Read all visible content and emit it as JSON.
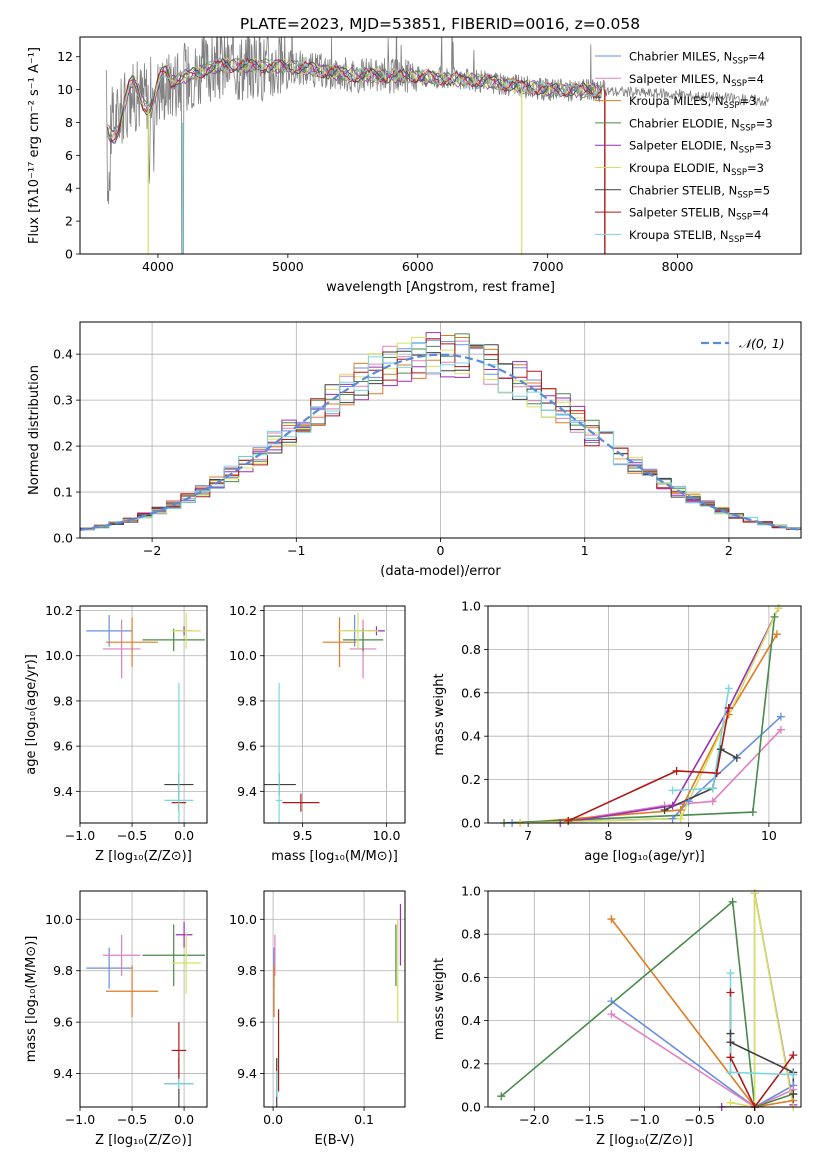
{
  "figure_title": "PLATE=2023, MJD=53851, FIBERID=0016, z=0.058",
  "colors": {
    "Chabrier MILES": "#6a8fe0",
    "Salpeter MILES": "#e080c0",
    "Kroupa MILES": "#e07b22",
    "Chabrier ELODIE": "#4a8a4a",
    "Salpeter ELODIE": "#9a2fb8",
    "Kroupa ELODIE": "#d8e060",
    "Chabrier STELIB": "#404040",
    "Salpeter STELIB": "#b01818",
    "Kroupa STELIB": "#78d8e0",
    "data": "#808080",
    "normal": "#5b8bd8"
  },
  "chart_data": [
    {
      "id": "spectrum",
      "type": "line",
      "title": "PLATE=2023, MJD=53851, FIBERID=0016, z=0.058",
      "xlabel": "wavelength [Angstrom, rest frame]",
      "ylabel": "Flux [fλ10⁻¹⁷ erg cm⁻² s⁻¹ A⁻¹]",
      "xlim": [
        3400,
        8950
      ],
      "ylim": [
        0,
        13.2
      ],
      "xticks": [
        4000,
        5000,
        6000,
        7000,
        8000
      ],
      "yticks": [
        0,
        2,
        4,
        6,
        8,
        10,
        12
      ],
      "grid": false,
      "legend": "upper-right",
      "legend_entries": [
        {
          "model": "Chabrier MILES",
          "label": "Chabrier MILES, N",
          "sub": "SSP",
          "tail": "=4"
        },
        {
          "model": "Salpeter MILES",
          "label": "Salpeter MILES, N",
          "sub": "SSP",
          "tail": "=4"
        },
        {
          "model": "Kroupa MILES",
          "label": "Kroupa MILES, N",
          "sub": "SSP",
          "tail": "=3"
        },
        {
          "model": "Chabrier ELODIE",
          "label": "Chabrier ELODIE, N",
          "sub": "SSP",
          "tail": "=3"
        },
        {
          "model": "Salpeter ELODIE",
          "label": "Salpeter ELODIE, N",
          "sub": "SSP",
          "tail": "=3"
        },
        {
          "model": "Kroupa ELODIE",
          "label": "Kroupa ELODIE, N",
          "sub": "SSP",
          "tail": "=3"
        },
        {
          "model": "Chabrier STELIB",
          "label": "Chabrier STELIB, N",
          "sub": "SSP",
          "tail": "=5"
        },
        {
          "model": "Salpeter STELIB",
          "label": "Salpeter STELIB, N",
          "sub": "SSP",
          "tail": "=4"
        },
        {
          "model": "Kroupa STELIB",
          "label": "Kroupa STELIB, N",
          "sub": "SSP",
          "tail": "=4"
        }
      ],
      "continuum": [
        [
          3600,
          7.5
        ],
        [
          3800,
          9.5
        ],
        [
          4000,
          10.0
        ],
        [
          4200,
          10.8
        ],
        [
          4500,
          11.5
        ],
        [
          5000,
          11.4
        ],
        [
          5500,
          10.9
        ],
        [
          6000,
          10.8
        ],
        [
          6500,
          10.5
        ],
        [
          7000,
          10.0
        ],
        [
          7500,
          9.9
        ],
        [
          8000,
          9.7
        ],
        [
          8700,
          9.3
        ]
      ]
    },
    {
      "id": "residuals",
      "type": "histogram",
      "xlabel": "(data-model)/error",
      "ylabel": "Normed distribution",
      "xlim": [
        -2.5,
        2.5
      ],
      "ylim": [
        0,
        0.47
      ],
      "xticks": [
        -2,
        -1,
        0,
        1,
        2
      ],
      "yticks": [
        0.0,
        0.1,
        0.2,
        0.3,
        0.4
      ],
      "grid": true,
      "bin_width": 0.1,
      "legend": "upper-right",
      "legend_label": "𝒩(0, 1)",
      "reference_curve": "normal(0,1)"
    },
    {
      "id": "age-vs-Z",
      "type": "scatter",
      "xlabel": "Z [log₁₀(Z/Z⊙)]",
      "ylabel": "age  [log₁₀(age/yr)]",
      "xlim": [
        -1.0,
        0.22
      ],
      "ylim": [
        9.26,
        10.22
      ],
      "xticks": [
        -1.0,
        -0.5,
        0.0
      ],
      "yticks": [
        9.4,
        9.6,
        9.8,
        10.0,
        10.2
      ],
      "grid": true,
      "points": [
        {
          "model": "Chabrier MILES",
          "x": -0.72,
          "y": 10.11,
          "xerr": 0.22,
          "yerr": 0.07
        },
        {
          "model": "Salpeter MILES",
          "x": -0.6,
          "y": 10.03,
          "xerr": 0.18,
          "yerr": 0.13
        },
        {
          "model": "Kroupa MILES",
          "x": -0.5,
          "y": 10.06,
          "xerr": 0.25,
          "yerr": 0.11
        },
        {
          "model": "Chabrier ELODIE",
          "x": -0.1,
          "y": 10.07,
          "xerr": 0.3,
          "yerr": 0.05
        },
        {
          "model": "Salpeter ELODIE",
          "x": 0.0,
          "y": 10.11,
          "xerr": 0.08,
          "yerr": 0.02
        },
        {
          "model": "Kroupa ELODIE",
          "x": 0.02,
          "y": 10.11,
          "xerr": 0.14,
          "yerr": 0.08
        },
        {
          "model": "Chabrier STELIB",
          "x": -0.05,
          "y": 9.43,
          "xerr": 0.14,
          "yerr": 0.05
        },
        {
          "model": "Salpeter STELIB",
          "x": -0.05,
          "y": 9.35,
          "xerr": 0.07,
          "yerr": 0.04
        },
        {
          "model": "Kroupa STELIB",
          "x": -0.05,
          "y": 9.36,
          "xerr": 0.14,
          "yerr": 0.52
        }
      ]
    },
    {
      "id": "age-vs-mass",
      "type": "scatter",
      "xlabel": "mass [log₁₀(M/M⊙)]",
      "ylabel": "",
      "xlim": [
        9.27,
        10.11
      ],
      "ylim": [
        9.26,
        10.22
      ],
      "xticks": [
        9.5,
        10.0
      ],
      "yticks": [
        9.4,
        9.6,
        9.8,
        10.0,
        10.2
      ],
      "grid": true,
      "points": [
        {
          "model": "Chabrier MILES",
          "x": 9.81,
          "y": 10.11,
          "xerr": 0.08,
          "yerr": 0.07
        },
        {
          "model": "Salpeter MILES",
          "x": 9.86,
          "y": 10.03,
          "xerr": 0.08,
          "yerr": 0.13
        },
        {
          "model": "Kroupa MILES",
          "x": 9.72,
          "y": 10.06,
          "xerr": 0.1,
          "yerr": 0.11
        },
        {
          "model": "Chabrier ELODIE",
          "x": 9.86,
          "y": 10.07,
          "xerr": 0.12,
          "yerr": 0.05
        },
        {
          "model": "Salpeter ELODIE",
          "x": 9.94,
          "y": 10.11,
          "xerr": 0.05,
          "yerr": 0.02
        },
        {
          "model": "Kroupa ELODIE",
          "x": 9.83,
          "y": 10.11,
          "xerr": 0.12,
          "yerr": 0.08
        },
        {
          "model": "Chabrier STELIB",
          "x": 9.36,
          "y": 9.43,
          "xerr": 0.1,
          "yerr": 0.05
        },
        {
          "model": "Salpeter STELIB",
          "x": 9.49,
          "y": 9.35,
          "xerr": 0.11,
          "yerr": 0.04
        },
        {
          "model": "Kroupa STELIB",
          "x": 9.36,
          "y": 9.36,
          "xerr": 0.02,
          "yerr": 0.52
        }
      ]
    },
    {
      "id": "weight-vs-age",
      "type": "line",
      "xlabel": "age  [log₁₀(age/yr)]",
      "ylabel": "mass weight",
      "xlim": [
        6.5,
        10.4
      ],
      "ylim": [
        0,
        1.0
      ],
      "xticks": [
        7,
        8,
        9,
        10
      ],
      "yticks": [
        0.0,
        0.2,
        0.4,
        0.6,
        0.8,
        1.0
      ],
      "grid": true,
      "series": [
        {
          "model": "Chabrier MILES",
          "x": [
            6.8,
            8.8,
            9.0,
            10.15
          ],
          "y": [
            0.0,
            0.02,
            0.1,
            0.49
          ]
        },
        {
          "model": "Salpeter MILES",
          "x": [
            7.5,
            8.7,
            9.3,
            10.15
          ],
          "y": [
            0.01,
            0.08,
            0.1,
            0.43
          ]
        },
        {
          "model": "Kroupa MILES",
          "x": [
            6.9,
            8.9,
            9.5,
            10.1
          ],
          "y": [
            0.0,
            0.06,
            0.5,
            0.87
          ]
        },
        {
          "model": "Chabrier ELODIE",
          "x": [
            6.7,
            9.8,
            10.07
          ],
          "y": [
            0.0,
            0.05,
            0.95
          ]
        },
        {
          "model": "Salpeter ELODIE",
          "x": [
            7.4,
            8.8,
            9.5,
            10.12
          ],
          "y": [
            0.0,
            0.08,
            0.53,
            0.99
          ]
        },
        {
          "model": "Kroupa ELODIE",
          "x": [
            6.9,
            8.9,
            10.12
          ],
          "y": [
            0.0,
            0.02,
            0.99
          ]
        },
        {
          "model": "Chabrier STELIB",
          "x": [
            8.7,
            9.3,
            9.4,
            9.6
          ],
          "y": [
            0.06,
            0.16,
            0.34,
            0.3
          ]
        },
        {
          "model": "Salpeter STELIB",
          "x": [
            7.5,
            8.85,
            9.35,
            9.5
          ],
          "y": [
            0.01,
            0.24,
            0.23,
            0.53
          ]
        },
        {
          "model": "Kroupa STELIB",
          "x": [
            8.8,
            9.3,
            9.5
          ],
          "y": [
            0.15,
            0.16,
            0.62
          ]
        }
      ]
    },
    {
      "id": "mass-vs-Z",
      "type": "scatter",
      "xlabel": "Z [log₁₀(Z/Z⊙)]",
      "ylabel": "mass [log₁₀(M/M⊙)]",
      "xlim": [
        -1.0,
        0.22
      ],
      "ylim": [
        9.27,
        10.11
      ],
      "xticks": [
        -1.0,
        -0.5,
        0.0
      ],
      "yticks": [
        9.4,
        9.6,
        9.8,
        10.0
      ],
      "grid": true,
      "points": [
        {
          "model": "Chabrier MILES",
          "x": -0.72,
          "y": 9.81,
          "xerr": 0.22,
          "yerr": 0.08
        },
        {
          "model": "Salpeter MILES",
          "x": -0.6,
          "y": 9.86,
          "xerr": 0.18,
          "yerr": 0.08
        },
        {
          "model": "Kroupa MILES",
          "x": -0.5,
          "y": 9.72,
          "xerr": 0.25,
          "yerr": 0.1
        },
        {
          "model": "Chabrier ELODIE",
          "x": -0.1,
          "y": 9.86,
          "xerr": 0.3,
          "yerr": 0.12
        },
        {
          "model": "Salpeter ELODIE",
          "x": 0.0,
          "y": 9.94,
          "xerr": 0.08,
          "yerr": 0.05
        },
        {
          "model": "Kroupa ELODIE",
          "x": 0.02,
          "y": 9.83,
          "xerr": 0.14,
          "yerr": 0.12
        },
        {
          "model": "Chabrier STELIB",
          "x": -0.05,
          "y": 9.36,
          "xerr": 0.14,
          "yerr": 0.1
        },
        {
          "model": "Salpeter STELIB",
          "x": -0.05,
          "y": 9.49,
          "xerr": 0.07,
          "yerr": 0.11
        },
        {
          "model": "Kroupa STELIB",
          "x": -0.05,
          "y": 9.36,
          "xerr": 0.14,
          "yerr": 0.02
        }
      ]
    },
    {
      "id": "mass-vs-ebv",
      "type": "scatter",
      "xlabel": "E(B-V)",
      "ylabel": "",
      "xlim": [
        -0.01,
        0.145
      ],
      "ylim": [
        9.27,
        10.11
      ],
      "xticks": [
        0.0,
        0.1
      ],
      "yticks": [
        9.4,
        9.6,
        9.8,
        10.0
      ],
      "grid": true,
      "points": [
        {
          "model": "Chabrier MILES",
          "x": 0.001,
          "y": 9.81,
          "xerr": 0,
          "yerr": 0.08
        },
        {
          "model": "Salpeter MILES",
          "x": 0.002,
          "y": 9.86,
          "xerr": 0,
          "yerr": 0.08
        },
        {
          "model": "Kroupa MILES",
          "x": 0.001,
          "y": 9.72,
          "xerr": 0,
          "yerr": 0.1
        },
        {
          "model": "Chabrier ELODIE",
          "x": 0.135,
          "y": 9.86,
          "xerr": 0,
          "yerr": 0.12
        },
        {
          "model": "Salpeter ELODIE",
          "x": 0.14,
          "y": 9.94,
          "xerr": 0,
          "yerr": 0.12
        },
        {
          "model": "Kroupa ELODIE",
          "x": 0.137,
          "y": 9.8,
          "xerr": 0,
          "yerr": 0.2
        },
        {
          "model": "Chabrier STELIB",
          "x": 0.004,
          "y": 9.36,
          "xerr": 0,
          "yerr": 0.1
        },
        {
          "model": "Salpeter STELIB",
          "x": 0.006,
          "y": 9.49,
          "xerr": 0,
          "yerr": 0.16
        },
        {
          "model": "Kroupa STELIB",
          "x": 0.004,
          "y": 9.36,
          "xerr": 0,
          "yerr": 0.05
        }
      ]
    },
    {
      "id": "weight-vs-Z",
      "type": "line",
      "xlabel": "Z [log₁₀(Z/Z⊙)]",
      "ylabel": "mass weight",
      "xlim": [
        -2.42,
        0.42
      ],
      "ylim": [
        0,
        1.0
      ],
      "xticks": [
        -2.0,
        -1.5,
        -1.0,
        -0.5,
        0.0
      ],
      "yticks": [
        0.0,
        0.2,
        0.4,
        0.6,
        0.8,
        1.0
      ],
      "grid": true,
      "series": [
        {
          "model": "Chabrier MILES",
          "x": [
            -1.3,
            0.0,
            0.35
          ],
          "y": [
            0.49,
            0.0,
            0.1
          ]
        },
        {
          "model": "Salpeter MILES",
          "x": [
            -1.3,
            0.0,
            0.35
          ],
          "y": [
            0.43,
            0.0,
            0.08
          ]
        },
        {
          "model": "Kroupa MILES",
          "x": [
            -1.3,
            0.0,
            0.35
          ],
          "y": [
            0.87,
            0.0,
            0.03
          ]
        },
        {
          "model": "Chabrier ELODIE",
          "x": [
            -2.3,
            -0.2,
            0.0,
            0.35
          ],
          "y": [
            0.05,
            0.95,
            0.0,
            0.06
          ]
        },
        {
          "model": "Salpeter ELODIE",
          "x": [
            -0.3,
            0.0,
            0.0,
            0.35
          ],
          "y": [
            0.0,
            0.0,
            0.99,
            0.01
          ]
        },
        {
          "model": "Kroupa ELODIE",
          "x": [
            -0.22,
            0.0,
            0.0,
            0.35
          ],
          "y": [
            0.02,
            0.0,
            0.99,
            0.0
          ]
        },
        {
          "model": "Chabrier STELIB",
          "x": [
            -0.22,
            -0.22,
            0.35,
            0.35
          ],
          "y": [
            0.34,
            0.3,
            0.16,
            0.06
          ]
        },
        {
          "model": "Salpeter STELIB",
          "x": [
            -0.22,
            -0.22,
            0.0,
            0.35
          ],
          "y": [
            0.53,
            0.23,
            0.0,
            0.24
          ]
        },
        {
          "model": "Kroupa STELIB",
          "x": [
            -0.22,
            -0.22,
            -0.22,
            0.35
          ],
          "y": [
            0.62,
            0.16,
            0.16,
            0.15
          ]
        }
      ]
    }
  ]
}
